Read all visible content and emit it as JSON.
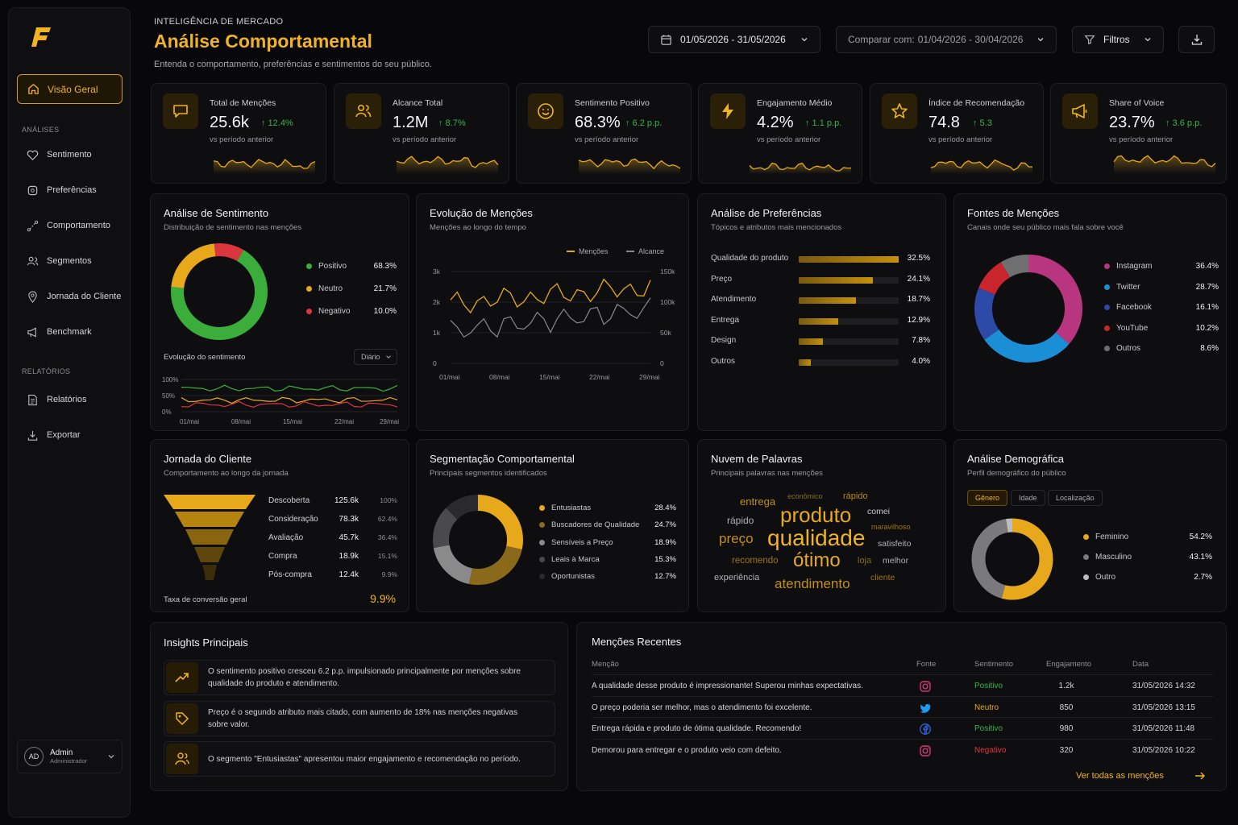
{
  "header": {
    "kicker": "INTELIGÊNCIA DE MERCADO",
    "title": "Análise Comportamental",
    "subtitle": "Entenda o comportamento, preferências e sentimentos do seu público.",
    "date_range": "01/05/2026 - 31/05/2026",
    "compare_label": "Comparar com:",
    "compare_range": "01/04/2026 - 30/04/2026",
    "filters_label": "Filtros"
  },
  "sidebar": {
    "active": "Visão Geral",
    "analyses_label": "ANÁLISES",
    "items": [
      "Sentimento",
      "Preferências",
      "Comportamento",
      "Segmentos",
      "Jornada do Cliente",
      "Benchmark"
    ],
    "reports_label": "RELATÓRIOS",
    "report_items": [
      "Relatórios",
      "Exportar"
    ],
    "user": {
      "initials": "AD",
      "name": "Admin",
      "role": "Administrador"
    }
  },
  "kpis": [
    {
      "label": "Total de Menções",
      "value": "25.6k",
      "delta": "↑ 12.4%",
      "note": "vs período anterior",
      "icon": "chat-icon"
    },
    {
      "label": "Alcance Total",
      "value": "1.2M",
      "delta": "↑ 8.7%",
      "note": "vs período anterior",
      "icon": "users-icon"
    },
    {
      "label": "Sentimento Positivo",
      "value": "68.3%",
      "delta": "↑ 6.2 p.p.",
      "note": "vs período anterior",
      "icon": "smile-icon"
    },
    {
      "label": "Engajamento Médio",
      "value": "4.2%",
      "delta": "↑ 1.1 p.p.",
      "note": "vs período anterior",
      "icon": "bolt-icon"
    },
    {
      "label": "Índice de Recomendação",
      "value": "74.8",
      "delta": "↑ 5.3",
      "note": "vs período anterior",
      "icon": "star-icon"
    },
    {
      "label": "Share of Voice",
      "value": "23.7%",
      "delta": "↑ 3.6 p.p.",
      "note": "vs período anterior",
      "icon": "megaphone-icon"
    }
  ],
  "sentiment": {
    "title": "Análise de Sentimento",
    "subtitle": "Distribuição de sentimento nas menções",
    "items": [
      {
        "label": "Positivo",
        "value": "68.3%",
        "pct": 68.3,
        "color": "#3bad3b"
      },
      {
        "label": "Neutro",
        "value": "21.7%",
        "pct": 21.7,
        "color": "#e7a91b"
      },
      {
        "label": "Negativo",
        "value": "10.0%",
        "pct": 10.0,
        "color": "#d9363e"
      }
    ],
    "evolution_label": "Evolução do sentimento",
    "period": "Diário",
    "y_ticks": [
      "100%",
      "50%",
      "0%"
    ],
    "x_ticks": [
      "01/mai",
      "08/mai",
      "15/mai",
      "22/mai",
      "29/mai"
    ]
  },
  "mentions_evolution": {
    "title": "Evolução de Menções",
    "subtitle": "Menções ao longo do tempo",
    "legend": [
      "Menções",
      "Alcance"
    ],
    "y_left": [
      "3k",
      "2k",
      "1k",
      "0"
    ],
    "y_right": [
      "150k",
      "100k",
      "50k",
      "0"
    ],
    "x_ticks": [
      "01/mai",
      "08/mai",
      "15/mai",
      "22/mai",
      "29/mai"
    ]
  },
  "preferences": {
    "title": "Análise de Preferências",
    "subtitle": "Tópicos e atributos mais mencionados",
    "items": [
      {
        "label": "Qualidade do produto",
        "value": "32.5%",
        "pct": 32.5
      },
      {
        "label": "Preço",
        "value": "24.1%",
        "pct": 24.1
      },
      {
        "label": "Atendimento",
        "value": "18.7%",
        "pct": 18.7
      },
      {
        "label": "Entrega",
        "value": "12.9%",
        "pct": 12.9
      },
      {
        "label": "Design",
        "value": "7.8%",
        "pct": 7.8
      },
      {
        "label": "Outros",
        "value": "4.0%",
        "pct": 4.0
      }
    ]
  },
  "sources": {
    "title": "Fontes de Menções",
    "subtitle": "Canais onde seu público mais fala sobre você",
    "items": [
      {
        "label": "Instagram",
        "value": "36.4%",
        "pct": 36.4,
        "color": "#b8357f"
      },
      {
        "label": "Twitter",
        "value": "28.7%",
        "pct": 28.7,
        "color": "#1b8fd6"
      },
      {
        "label": "Facebook",
        "value": "16.1%",
        "pct": 16.1,
        "color": "#2d4aa8"
      },
      {
        "label": "YouTube",
        "value": "10.2%",
        "pct": 10.2,
        "color": "#c8262c"
      },
      {
        "label": "Outros",
        "value": "8.6%",
        "pct": 8.6,
        "color": "#6f6f72"
      }
    ]
  },
  "journey": {
    "title": "Jornada do Cliente",
    "subtitle": "Comportamento ao longo da jornada",
    "stages": [
      {
        "label": "Descoberta",
        "value": "125.6k",
        "pct": "100%"
      },
      {
        "label": "Consideração",
        "value": "78.3k",
        "pct": "62.4%"
      },
      {
        "label": "Avaliação",
        "value": "45.7k",
        "pct": "36.4%"
      },
      {
        "label": "Compra",
        "value": "18.9k",
        "pct": "15.1%"
      },
      {
        "label": "Pós-compra",
        "value": "12.4k",
        "pct": "9.9%"
      }
    ],
    "conversion_label": "Taxa de conversão geral",
    "conversion_value": "9.9%"
  },
  "segmentation": {
    "title": "Segmentação Comportamental",
    "subtitle": "Principais segmentos identificados",
    "items": [
      {
        "label": "Entusiastas",
        "value": "28.4%",
        "pct": 28.4,
        "color": "#e7a91b"
      },
      {
        "label": "Buscadores de Qualidade",
        "value": "24.7%",
        "pct": 24.7,
        "color": "#8a6a1a"
      },
      {
        "label": "Sensíveis a Preço",
        "value": "18.9%",
        "pct": 18.9,
        "color": "#8a8a8a"
      },
      {
        "label": "Leais à Marca",
        "value": "15.3%",
        "pct": 15.3,
        "color": "#4a4a4c"
      },
      {
        "label": "Oportunistas",
        "value": "12.7%",
        "pct": 12.7,
        "color": "#2a2a2c"
      }
    ]
  },
  "wordcloud": {
    "title": "Nuvem de Palavras",
    "subtitle": "Principais palavras nas menções",
    "words": [
      "entrega",
      "econômico",
      "rápido",
      "rápido",
      "produto",
      "comei",
      "maravilhoso",
      "preço",
      "qualidade",
      "satisfeito",
      "recomendo",
      "ótimo",
      "loja",
      "melhor",
      "experiência",
      "atendimento",
      "cliente"
    ]
  },
  "demographics": {
    "title": "Análise Demográfica",
    "subtitle": "Perfil demográfico do público",
    "tabs": [
      "Gênero",
      "Idade",
      "Localização"
    ],
    "items": [
      {
        "label": "Feminino",
        "value": "54.2%",
        "pct": 54.2,
        "color": "#e7a91b"
      },
      {
        "label": "Masculino",
        "value": "43.1%",
        "pct": 43.1,
        "color": "#7a7a7c"
      },
      {
        "label": "Outro",
        "value": "2.7%",
        "pct": 2.7,
        "color": "#bdbdbf"
      }
    ]
  },
  "insights": {
    "title": "Insights Principais",
    "items": [
      "O sentimento positivo cresceu 6.2 p.p. impulsionado principalmente por menções sobre qualidade do produto e atendimento.",
      "Preço é o segundo atributo mais citado, com aumento de 18% nas menções negativas sobre valor.",
      "O segmento \"Entusiastas\" apresentou maior engajamento e recomendação no período."
    ]
  },
  "recent": {
    "title": "Menções Recentes",
    "columns": [
      "Menção",
      "Fonte",
      "Sentimento",
      "Engajamento",
      "Data"
    ],
    "rows": [
      {
        "text": "A qualidade desse produto é impressionante! Superou minhas expectativas.",
        "source": "instagram-icon",
        "sentiment": "Positivo",
        "engagement": "1.2k",
        "date": "31/05/2026 14:32"
      },
      {
        "text": "O preço poderia ser melhor, mas o atendimento foi excelente.",
        "source": "twitter-icon",
        "sentiment": "Neutro",
        "engagement": "850",
        "date": "31/05/2026 13:15"
      },
      {
        "text": "Entrega rápida e produto de ótima qualidade. Recomendo!",
        "source": "facebook-icon",
        "sentiment": "Positivo",
        "engagement": "980",
        "date": "31/05/2026 11:48"
      },
      {
        "text": "Demorou para entregar e o produto veio com defeito.",
        "source": "instagram-icon",
        "sentiment": "Negativo",
        "engagement": "320",
        "date": "31/05/2026 10:22"
      }
    ],
    "see_all": "Ver todas as menções"
  },
  "colors": {
    "accent": "#f0b323",
    "positive": "#37b34a",
    "negative": "#e0383e",
    "neutral": "#e7a91b"
  }
}
